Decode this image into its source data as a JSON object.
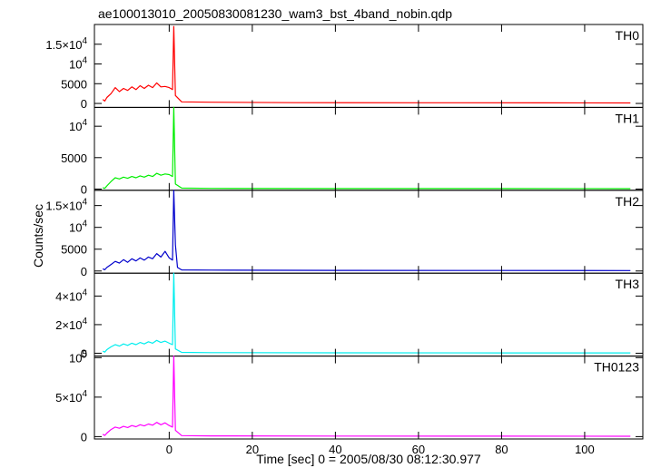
{
  "chart_data": {
    "type": "line",
    "title": "ae100013010_20050830081230_wam3_bst_4band_nobin.qdp",
    "xlabel": "Time [sec] 0 = 2005/08/30 08:12:30.977",
    "ylabel": "Counts/sec",
    "xlim": [
      -18,
      114
    ],
    "xticks": [
      {
        "value": 0,
        "label": "0"
      },
      {
        "value": 20,
        "label": "20"
      },
      {
        "value": 40,
        "label": "40"
      },
      {
        "value": 60,
        "label": "60"
      },
      {
        "value": 80,
        "label": "80"
      },
      {
        "value": 100,
        "label": "100"
      }
    ],
    "grid": false,
    "series": [
      {
        "name": "TH0",
        "color": "#ff0000",
        "ylim": [
          -1000,
          20000
        ],
        "yticks": [
          {
            "value": 0,
            "label": "0"
          },
          {
            "value": 5000,
            "label": "5000"
          },
          {
            "value": 10000,
            "label": "10",
            "exp": "4"
          },
          {
            "value": 15000,
            "label": "1.5×10",
            "exp": "4"
          }
        ],
        "points": [
          [
            -16,
            1000
          ],
          [
            -15.5,
            600
          ],
          [
            -15,
            1500
          ],
          [
            -14,
            2500
          ],
          [
            -13,
            4000
          ],
          [
            -12,
            3000
          ],
          [
            -11,
            3800
          ],
          [
            -10,
            3300
          ],
          [
            -9,
            4200
          ],
          [
            -8,
            3500
          ],
          [
            -7,
            4500
          ],
          [
            -6,
            3800
          ],
          [
            -5,
            4600
          ],
          [
            -4,
            4000
          ],
          [
            -3,
            5200
          ],
          [
            -2,
            4200
          ],
          [
            -1,
            4300
          ],
          [
            0,
            4000
          ],
          [
            0.8,
            3500
          ],
          [
            1.1,
            19500
          ],
          [
            1.5,
            2000
          ],
          [
            3,
            400
          ],
          [
            10,
            300
          ],
          [
            30,
            200
          ],
          [
            60,
            180
          ],
          [
            90,
            150
          ],
          [
            111,
            120
          ]
        ]
      },
      {
        "name": "TH1",
        "color": "#00ee00",
        "ylim": [
          -200,
          13000
        ],
        "yticks": [
          {
            "value": 0,
            "label": "0"
          },
          {
            "value": 5000,
            "label": "5000"
          },
          {
            "value": 10000,
            "label": "10",
            "exp": "4"
          }
        ],
        "points": [
          [
            -16,
            200
          ],
          [
            -15.5,
            100
          ],
          [
            -15,
            500
          ],
          [
            -14,
            1200
          ],
          [
            -13,
            1800
          ],
          [
            -12,
            1600
          ],
          [
            -11,
            1900
          ],
          [
            -10,
            1700
          ],
          [
            -9,
            2000
          ],
          [
            -8,
            1800
          ],
          [
            -7,
            2100
          ],
          [
            -6,
            1900
          ],
          [
            -5,
            2200
          ],
          [
            -4,
            2000
          ],
          [
            -3,
            2500
          ],
          [
            -2,
            2200
          ],
          [
            -1,
            2400
          ],
          [
            0,
            2300
          ],
          [
            0.8,
            2000
          ],
          [
            1.1,
            13000
          ],
          [
            1.5,
            800
          ],
          [
            3,
            150
          ],
          [
            10,
            100
          ],
          [
            40,
            80
          ],
          [
            80,
            70
          ],
          [
            111,
            60
          ]
        ]
      },
      {
        "name": "TH2",
        "color": "#0000cc",
        "ylim": [
          -500,
          18500
        ],
        "yticks": [
          {
            "value": 0,
            "label": "0"
          },
          {
            "value": 5000,
            "label": "5000"
          },
          {
            "value": 10000,
            "label": "10",
            "exp": "4"
          },
          {
            "value": 15000,
            "label": "1.5×10",
            "exp": "4"
          }
        ],
        "points": [
          [
            -16,
            500
          ],
          [
            -15.5,
            300
          ],
          [
            -15,
            800
          ],
          [
            -14,
            1500
          ],
          [
            -13,
            2200
          ],
          [
            -12,
            1800
          ],
          [
            -11,
            2600
          ],
          [
            -10,
            2000
          ],
          [
            -9,
            2800
          ],
          [
            -8,
            2300
          ],
          [
            -7,
            3000
          ],
          [
            -6,
            2500
          ],
          [
            -5,
            3200
          ],
          [
            -4,
            2800
          ],
          [
            -3,
            4000
          ],
          [
            -2,
            3200
          ],
          [
            -1,
            4500
          ],
          [
            0,
            3000
          ],
          [
            0.8,
            2500
          ],
          [
            1.1,
            18500
          ],
          [
            1.5,
            6000
          ],
          [
            2,
            800
          ],
          [
            3,
            250
          ],
          [
            10,
            200
          ],
          [
            40,
            150
          ],
          [
            80,
            120
          ],
          [
            111,
            100
          ]
        ]
      },
      {
        "name": "TH3",
        "color": "#00eeee",
        "ylim": [
          -2000,
          56000
        ],
        "yticks": [
          {
            "value": 0,
            "label": "0"
          },
          {
            "value": 20000,
            "label": "2×10",
            "exp": "4"
          },
          {
            "value": 40000,
            "label": "4×10",
            "exp": "4"
          }
        ],
        "points": [
          [
            -16,
            1500
          ],
          [
            -15.5,
            800
          ],
          [
            -15,
            2500
          ],
          [
            -14,
            4500
          ],
          [
            -13,
            6000
          ],
          [
            -12,
            5000
          ],
          [
            -11,
            6500
          ],
          [
            -10,
            5500
          ],
          [
            -9,
            7000
          ],
          [
            -8,
            6000
          ],
          [
            -7,
            7500
          ],
          [
            -6,
            6500
          ],
          [
            -5,
            8000
          ],
          [
            -4,
            7000
          ],
          [
            -3,
            9000
          ],
          [
            -2,
            7500
          ],
          [
            -1,
            8500
          ],
          [
            0,
            7000
          ],
          [
            0.8,
            6000
          ],
          [
            1.1,
            56000
          ],
          [
            1.5,
            3000
          ],
          [
            3,
            600
          ],
          [
            10,
            400
          ],
          [
            40,
            300
          ],
          [
            80,
            250
          ],
          [
            111,
            200
          ]
        ]
      },
      {
        "name": "TH0123",
        "color": "#ff00ff",
        "ylim": [
          -3000,
          102000
        ],
        "yticks": [
          {
            "value": 0,
            "label": "0"
          },
          {
            "value": 50000,
            "label": "5×10",
            "exp": "4"
          },
          {
            "value": 100000,
            "label": "10",
            "exp": "5"
          }
        ],
        "points": [
          [
            -16,
            3000
          ],
          [
            -15.5,
            1500
          ],
          [
            -15,
            4500
          ],
          [
            -14,
            9000
          ],
          [
            -13,
            12000
          ],
          [
            -12,
            10500
          ],
          [
            -11,
            13000
          ],
          [
            -10,
            11500
          ],
          [
            -9,
            14000
          ],
          [
            -8,
            12500
          ],
          [
            -7,
            15000
          ],
          [
            -6,
            13500
          ],
          [
            -5,
            16000
          ],
          [
            -4,
            14500
          ],
          [
            -3,
            18000
          ],
          [
            -2,
            15000
          ],
          [
            -1,
            17500
          ],
          [
            0,
            14000
          ],
          [
            0.8,
            12000
          ],
          [
            1.1,
            102000
          ],
          [
            1.5,
            8000
          ],
          [
            3,
            1200
          ],
          [
            10,
            900
          ],
          [
            40,
            700
          ],
          [
            80,
            600
          ],
          [
            111,
            500
          ]
        ]
      }
    ]
  }
}
